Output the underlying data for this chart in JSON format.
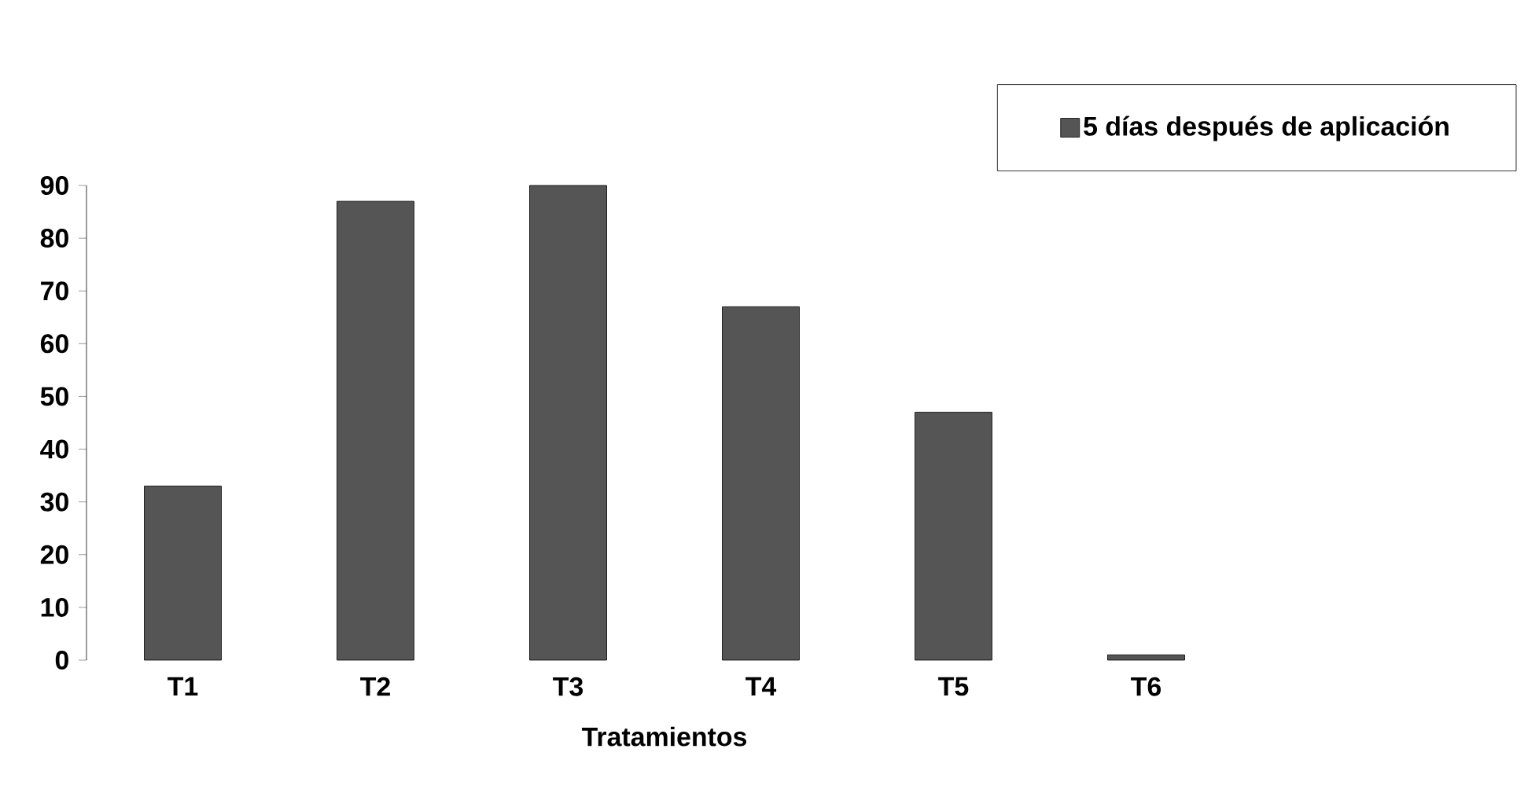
{
  "chart_data": {
    "type": "bar",
    "xlabel": "Tratamientos",
    "categories": [
      "T1",
      "T2",
      "T3",
      "T4",
      "T5",
      "T6"
    ],
    "series": [
      {
        "name": "5 días después de aplicación",
        "color": "#555555",
        "values": [
          33,
          87,
          90,
          67,
          47,
          1
        ]
      }
    ],
    "ylim": [
      0,
      90
    ],
    "yticks": [
      0,
      10,
      20,
      30,
      40,
      50,
      60,
      70,
      80,
      90
    ],
    "legend": "top right"
  }
}
